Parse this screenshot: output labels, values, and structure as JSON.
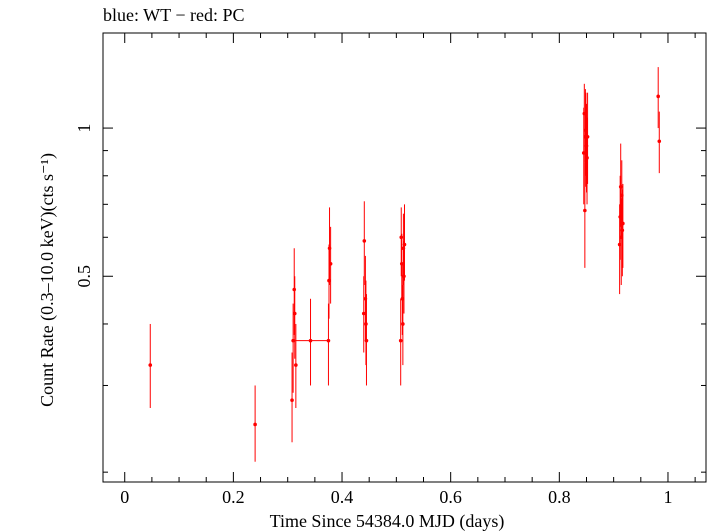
{
  "chart_data": {
    "type": "scatter",
    "title": "blue: WT − red: PC",
    "xlabel": "Time Since 54384.0 MJD (days)",
    "ylabel": "Count Rate (0.3–10.0 keV)(cts s⁻¹)",
    "xlim": [
      -0.04,
      1.07
    ],
    "ylim": [
      0.191,
      1.56
    ],
    "yscale": "log",
    "grid": false,
    "x_ticks": [
      0,
      0.2,
      0.4,
      0.6,
      0.8,
      1
    ],
    "x_tick_labels": [
      "0",
      "0.2",
      "0.4",
      "0.6",
      "0.8",
      "1"
    ],
    "y_ticks": [
      0.5,
      1
    ],
    "y_tick_labels": [
      "0.5",
      "1"
    ],
    "series": [
      {
        "name": "PC",
        "color": "#ff0000",
        "points": [
          {
            "x": 0.047,
            "y": 0.33,
            "ylo": 0.27,
            "yhi": 0.4
          },
          {
            "x": 0.24,
            "y": 0.25,
            "ylo": 0.21,
            "yhi": 0.3
          },
          {
            "x": 0.308,
            "y": 0.28,
            "ylo": 0.23,
            "yhi": 0.35
          },
          {
            "x": 0.31,
            "y": 0.37,
            "ylo": 0.29,
            "yhi": 0.44
          },
          {
            "x": 0.312,
            "y": 0.47,
            "ylo": 0.38,
            "yhi": 0.57
          },
          {
            "x": 0.313,
            "y": 0.42,
            "ylo": 0.34,
            "yhi": 0.5
          },
          {
            "x": 0.315,
            "y": 0.33,
            "ylo": 0.27,
            "yhi": 0.4
          },
          {
            "x": 0.342,
            "y": 0.37,
            "ylo": 0.3,
            "yhi": 0.45,
            "xlo": 0.31,
            "xhi": 0.374
          },
          {
            "x": 0.375,
            "y": 0.37,
            "ylo": 0.3,
            "yhi": 0.44
          },
          {
            "x": 0.376,
            "y": 0.49,
            "ylo": 0.41,
            "yhi": 0.58
          },
          {
            "x": 0.377,
            "y": 0.57,
            "ylo": 0.48,
            "yhi": 0.69
          },
          {
            "x": 0.379,
            "y": 0.53,
            "ylo": 0.44,
            "yhi": 0.63
          },
          {
            "x": 0.44,
            "y": 0.42,
            "ylo": 0.35,
            "yhi": 0.5
          },
          {
            "x": 0.441,
            "y": 0.59,
            "ylo": 0.48,
            "yhi": 0.71
          },
          {
            "x": 0.443,
            "y": 0.45,
            "ylo": 0.37,
            "yhi": 0.55
          },
          {
            "x": 0.444,
            "y": 0.4,
            "ylo": 0.33,
            "yhi": 0.49
          },
          {
            "x": 0.445,
            "y": 0.37,
            "ylo": 0.3,
            "yhi": 0.46
          },
          {
            "x": 0.508,
            "y": 0.37,
            "ylo": 0.3,
            "yhi": 0.45
          },
          {
            "x": 0.509,
            "y": 0.6,
            "ylo": 0.5,
            "yhi": 0.69
          },
          {
            "x": 0.51,
            "y": 0.53,
            "ylo": 0.45,
            "yhi": 0.61
          },
          {
            "x": 0.511,
            "y": 0.45,
            "ylo": 0.38,
            "yhi": 0.53
          },
          {
            "x": 0.512,
            "y": 0.4,
            "ylo": 0.33,
            "yhi": 0.48
          },
          {
            "x": 0.513,
            "y": 0.57,
            "ylo": 0.48,
            "yhi": 0.67
          },
          {
            "x": 0.514,
            "y": 0.5,
            "ylo": 0.42,
            "yhi": 0.59
          },
          {
            "x": 0.515,
            "y": 0.58,
            "ylo": 0.49,
            "yhi": 0.7
          },
          {
            "x": 0.845,
            "y": 0.89,
            "ylo": 0.7,
            "yhi": 1.1
          },
          {
            "x": 0.846,
            "y": 1.07,
            "ylo": 0.85,
            "yhi": 1.23
          },
          {
            "x": 0.847,
            "y": 0.68,
            "ylo": 0.52,
            "yhi": 0.85
          },
          {
            "x": 0.848,
            "y": 0.96,
            "ylo": 0.76,
            "yhi": 1.2
          },
          {
            "x": 0.849,
            "y": 0.99,
            "ylo": 0.8,
            "yhi": 1.18
          },
          {
            "x": 0.85,
            "y": 0.92,
            "ylo": 0.74,
            "yhi": 1.12
          },
          {
            "x": 0.851,
            "y": 0.87,
            "ylo": 0.7,
            "yhi": 1.05
          },
          {
            "x": 0.852,
            "y": 0.96,
            "ylo": 0.77,
            "yhi": 1.18
          },
          {
            "x": 0.911,
            "y": 0.58,
            "ylo": 0.46,
            "yhi": 0.7
          },
          {
            "x": 0.912,
            "y": 0.66,
            "ylo": 0.54,
            "yhi": 0.8
          },
          {
            "x": 0.913,
            "y": 0.76,
            "ylo": 0.63,
            "yhi": 0.93
          },
          {
            "x": 0.914,
            "y": 0.6,
            "ylo": 0.48,
            "yhi": 0.72
          },
          {
            "x": 0.915,
            "y": 0.73,
            "ylo": 0.6,
            "yhi": 0.86
          },
          {
            "x": 0.916,
            "y": 0.62,
            "ylo": 0.5,
            "yhi": 0.75
          },
          {
            "x": 0.917,
            "y": 0.64,
            "ylo": 0.52,
            "yhi": 0.77
          },
          {
            "x": 0.982,
            "y": 1.16,
            "ylo": 1.0,
            "yhi": 1.33
          },
          {
            "x": 0.984,
            "y": 0.94,
            "ylo": 0.81,
            "yhi": 1.08
          }
        ]
      }
    ]
  }
}
